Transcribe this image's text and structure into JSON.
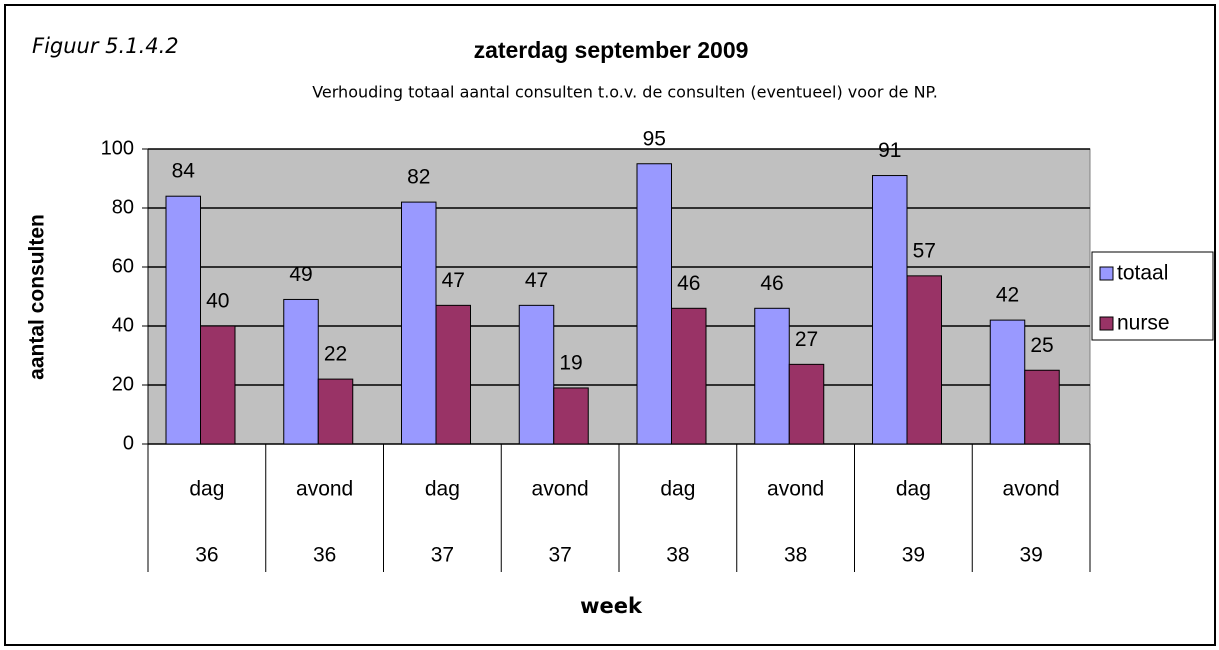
{
  "chart_data": {
    "type": "bar",
    "figure_label": "Figuur 5.1.4.2",
    "title": "zaterdag september 2009",
    "subtitle": "Verhouding totaal aantal consulten t.o.v. de consulten (eventueel) voor de NP.",
    "x_label": "week",
    "y_label": "aantal consulten",
    "categories": [
      "dag",
      "avond",
      "dag",
      "avond",
      "dag",
      "avond",
      "dag",
      "avond"
    ],
    "week_labels": [
      "36",
      "36",
      "37",
      "37",
      "38",
      "38",
      "39",
      "39"
    ],
    "series": [
      {
        "name": "totaal",
        "color": "#9999ff",
        "values": [
          84,
          49,
          82,
          47,
          95,
          46,
          91,
          42
        ]
      },
      {
        "name": "nurse",
        "color": "#993366",
        "values": [
          40,
          22,
          47,
          19,
          46,
          27,
          57,
          25
        ]
      }
    ],
    "ylim": [
      0,
      100
    ],
    "yticks": [
      0,
      20,
      40,
      60,
      80,
      100
    ],
    "grid": true,
    "plot_background": "#c0c0c0",
    "legend": "right"
  }
}
